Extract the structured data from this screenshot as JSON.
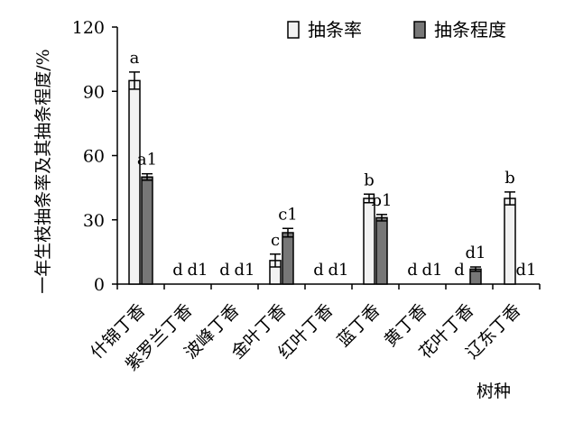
{
  "chart_data": {
    "type": "bar",
    "xlabel": "树种",
    "ylabel": "一年生枝抽条率及其抽条程度/%",
    "ylim": [
      0,
      120
    ],
    "yticks": [
      0,
      30,
      60,
      90,
      120
    ],
    "grid": false,
    "legend_position": "top-right",
    "categories": [
      "什锦丁香",
      "紫罗兰丁香",
      "波峰丁香",
      "金叶丁香",
      "红叶丁香",
      "蓝丁香",
      "黄丁香",
      "花叶丁香",
      "辽东丁香"
    ],
    "series": [
      {
        "name": "抽条率",
        "color": "#f2f2f2",
        "values": [
          95,
          0,
          0,
          11,
          0,
          40,
          0,
          0,
          40
        ],
        "errors": [
          4,
          0,
          0,
          3,
          0,
          2,
          0,
          0,
          3
        ],
        "labels": [
          "a",
          "d",
          "d",
          "c",
          "d",
          "b",
          "d",
          "d",
          "b"
        ]
      },
      {
        "name": "抽条程度",
        "color": "#777777",
        "values": [
          50,
          0,
          0,
          24,
          0,
          31,
          0,
          7,
          0
        ],
        "errors": [
          1.5,
          0,
          0,
          2,
          0,
          1.5,
          0,
          1,
          0
        ],
        "labels": [
          "a1",
          "d1",
          "d1",
          "c1",
          "d1",
          "b1",
          "d1",
          "d1",
          "d1"
        ]
      }
    ]
  }
}
